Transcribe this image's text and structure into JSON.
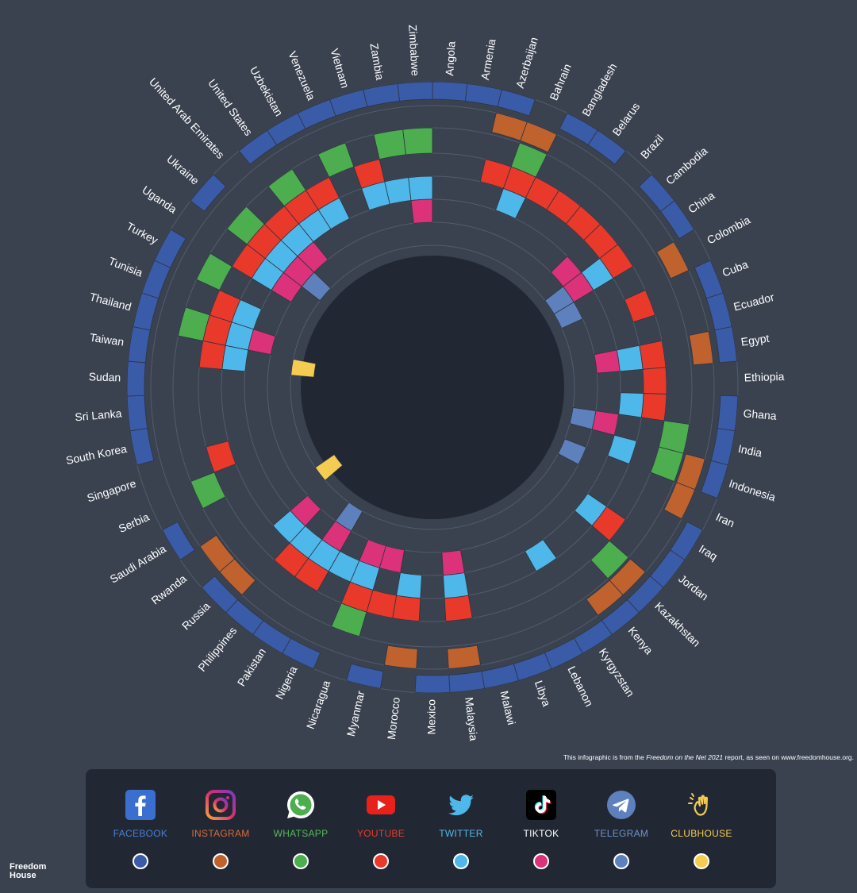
{
  "source_note": {
    "prefix": "This infographic is from the ",
    "report": "Freedom on the Net 2021",
    "suffix": " report, as seen on www.freedomhouse.org."
  },
  "logo": {
    "line1": "Freedom",
    "line2": "House"
  },
  "platforms": [
    {
      "key": "facebook",
      "label": "FACEBOOK",
      "color": "#3a5ba8",
      "icon": "facebook-icon"
    },
    {
      "key": "instagram",
      "label": "INSTAGRAM",
      "color": "#c0622e",
      "icon": "instagram-icon"
    },
    {
      "key": "whatsapp",
      "label": "WHATSAPP",
      "color": "#4cae4f",
      "icon": "whatsapp-icon"
    },
    {
      "key": "youtube",
      "label": "YOUTUBE",
      "color": "#e8392b",
      "icon": "youtube-icon"
    },
    {
      "key": "twitter",
      "label": "TWITTER",
      "color": "#4fb8ea",
      "icon": "twitter-icon"
    },
    {
      "key": "tiktok",
      "label": "TIKTOK",
      "color": "#db3279",
      "icon": "tiktok-icon"
    },
    {
      "key": "telegram",
      "label": "TELEGRAM",
      "color": "#5e80bd",
      "icon": "telegram-icon"
    },
    {
      "key": "clubhouse",
      "label": "CLUBHOUSE",
      "color": "#f4cc52",
      "icon": "clubhouse-icon"
    }
  ],
  "countries": [
    {
      "name": "Angola",
      "blocked": [
        "facebook"
      ]
    },
    {
      "name": "Armenia",
      "blocked": [
        "facebook"
      ]
    },
    {
      "name": "Azerbaijan",
      "blocked": [
        "facebook",
        "instagram",
        "youtube"
      ]
    },
    {
      "name": "Bahrain",
      "blocked": [
        "instagram",
        "whatsapp",
        "youtube",
        "twitter"
      ]
    },
    {
      "name": "Bangladesh",
      "blocked": [
        "facebook",
        "youtube"
      ]
    },
    {
      "name": "Belarus",
      "blocked": [
        "facebook",
        "youtube"
      ]
    },
    {
      "name": "Brazil",
      "blocked": [
        "youtube"
      ]
    },
    {
      "name": "Cambodia",
      "blocked": [
        "facebook",
        "youtube",
        "tiktok"
      ]
    },
    {
      "name": "China",
      "blocked": [
        "facebook",
        "youtube",
        "twitter",
        "tiktok",
        "telegram"
      ]
    },
    {
      "name": "Colombia",
      "blocked": [
        "instagram",
        "telegram"
      ]
    },
    {
      "name": "Cuba",
      "blocked": [
        "facebook",
        "youtube"
      ]
    },
    {
      "name": "Ecuador",
      "blocked": [
        "facebook"
      ]
    },
    {
      "name": "Egypt",
      "blocked": [
        "facebook",
        "instagram",
        "youtube",
        "twitter",
        "tiktok"
      ]
    },
    {
      "name": "Ethiopia",
      "blocked": [
        "youtube"
      ]
    },
    {
      "name": "Ghana",
      "blocked": [
        "facebook",
        "youtube",
        "twitter"
      ]
    },
    {
      "name": "India",
      "blocked": [
        "facebook",
        "whatsapp",
        "tiktok",
        "telegram"
      ]
    },
    {
      "name": "Indonesia",
      "blocked": [
        "facebook",
        "instagram",
        "whatsapp",
        "twitter"
      ]
    },
    {
      "name": "Iran",
      "blocked": [
        "instagram",
        "telegram"
      ]
    },
    {
      "name": "Iraq",
      "blocked": [
        "facebook"
      ]
    },
    {
      "name": "Jordan",
      "blocked": [
        "facebook",
        "youtube",
        "twitter"
      ]
    },
    {
      "name": "Kazakhstan",
      "blocked": [
        "facebook",
        "instagram",
        "whatsapp"
      ]
    },
    {
      "name": "Kenya",
      "blocked": [
        "facebook",
        "instagram"
      ]
    },
    {
      "name": "Kyrgyzstan",
      "blocked": [
        "facebook",
        "twitter"
      ]
    },
    {
      "name": "Lebanon",
      "blocked": [
        "facebook"
      ]
    },
    {
      "name": "Libya",
      "blocked": [
        "facebook"
      ]
    },
    {
      "name": "Malawi",
      "blocked": [
        "facebook"
      ]
    },
    {
      "name": "Malaysia",
      "blocked": [
        "facebook",
        "instagram",
        "youtube",
        "twitter",
        "tiktok"
      ]
    },
    {
      "name": "Mexico",
      "blocked": [
        "facebook"
      ]
    },
    {
      "name": "Morocco",
      "blocked": [
        "instagram",
        "youtube",
        "twitter"
      ]
    },
    {
      "name": "Myanmar",
      "blocked": [
        "facebook",
        "youtube",
        "tiktok"
      ]
    },
    {
      "name": "Nicaragua",
      "blocked": [
        "whatsapp",
        "youtube",
        "twitter",
        "tiktok"
      ]
    },
    {
      "name": "Nigeria",
      "blocked": [
        "facebook",
        "twitter"
      ]
    },
    {
      "name": "Pakistan",
      "blocked": [
        "facebook",
        "youtube",
        "twitter",
        "tiktok",
        "telegram"
      ]
    },
    {
      "name": "Philippines",
      "blocked": [
        "facebook",
        "youtube",
        "twitter"
      ]
    },
    {
      "name": "Russia",
      "blocked": [
        "facebook",
        "instagram",
        "twitter",
        "tiktok"
      ]
    },
    {
      "name": "Rwanda",
      "blocked": [
        "instagram",
        "clubhouse"
      ]
    },
    {
      "name": "Saudi Arabia",
      "blocked": [
        "facebook"
      ]
    },
    {
      "name": "Serbia",
      "blocked": [
        "whatsapp"
      ]
    },
    {
      "name": "Singapore",
      "blocked": [
        "youtube"
      ]
    },
    {
      "name": "South Korea",
      "blocked": [
        "facebook"
      ]
    },
    {
      "name": "Sri Lanka",
      "blocked": [
        "facebook"
      ]
    },
    {
      "name": "Sudan",
      "blocked": [
        "facebook"
      ]
    },
    {
      "name": "Taiwan",
      "blocked": [
        "facebook",
        "youtube",
        "twitter",
        "clubhouse"
      ]
    },
    {
      "name": "Thailand",
      "blocked": [
        "facebook",
        "whatsapp",
        "youtube",
        "twitter",
        "tiktok"
      ]
    },
    {
      "name": "Tunisia",
      "blocked": [
        "facebook",
        "youtube",
        "twitter"
      ]
    },
    {
      "name": "Turkey",
      "blocked": [
        "facebook",
        "whatsapp"
      ]
    },
    {
      "name": "Uganda",
      "blocked": [
        "youtube",
        "twitter",
        "tiktok"
      ]
    },
    {
      "name": "Ukraine",
      "blocked": [
        "facebook",
        "whatsapp",
        "youtube",
        "twitter",
        "tiktok",
        "telegram"
      ]
    },
    {
      "name": "United Arab Emirates",
      "blocked": [
        "youtube",
        "twitter",
        "tiktok"
      ]
    },
    {
      "name": "United States",
      "blocked": [
        "facebook",
        "whatsapp",
        "youtube",
        "twitter"
      ]
    },
    {
      "name": "Uzbekistan",
      "blocked": [
        "facebook",
        "youtube",
        "twitter"
      ]
    },
    {
      "name": "Venezuela",
      "blocked": [
        "facebook",
        "whatsapp"
      ]
    },
    {
      "name": "Vietnam",
      "blocked": [
        "facebook",
        "youtube",
        "twitter"
      ]
    },
    {
      "name": "Zambia",
      "blocked": [
        "facebook",
        "whatsapp",
        "twitter"
      ]
    },
    {
      "name": "Zimbabwe",
      "blocked": [
        "facebook",
        "whatsapp",
        "twitter",
        "tiktok"
      ]
    }
  ],
  "colors": {
    "background": "#3a4250",
    "panel": "#222833",
    "center": "#222833",
    "ring_line": "#535c6a"
  }
}
